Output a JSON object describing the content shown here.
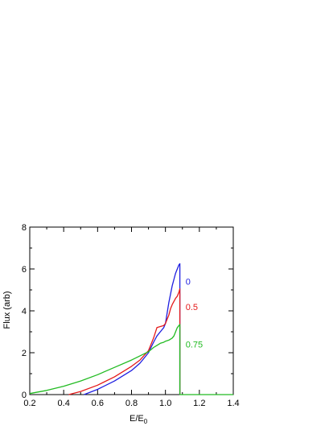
{
  "chart_data": {
    "type": "line",
    "title": "",
    "xlabel": "E/E",
    "xlabel_subscript": "0",
    "ylabel": "Flux (arb)",
    "xlim": [
      0.2,
      1.4
    ],
    "ylim": [
      0,
      8
    ],
    "x_ticks": [
      "0.2",
      "0.4",
      "0.6",
      "0.8",
      "1.0",
      "1.2",
      "1.4"
    ],
    "y_ticks": [
      "0",
      "2",
      "4",
      "6",
      "8"
    ],
    "grid": false,
    "series": [
      {
        "name": "0",
        "color": "#1f1fe0",
        "x": [
          0.52,
          0.6,
          0.7,
          0.8,
          0.85,
          0.9,
          0.93,
          0.95,
          0.97,
          0.99,
          1.0,
          1.01,
          1.02,
          1.03,
          1.04,
          1.05,
          1.06,
          1.07,
          1.08,
          1.085,
          1.085
        ],
        "y": [
          0.0,
          0.25,
          0.65,
          1.15,
          1.5,
          2.0,
          2.5,
          2.8,
          3.0,
          3.2,
          3.4,
          3.9,
          4.4,
          4.8,
          5.2,
          5.5,
          5.8,
          6.0,
          6.2,
          6.25,
          0.0
        ]
      },
      {
        "name": "0.5",
        "color": "#e41a1a",
        "x": [
          0.43,
          0.5,
          0.6,
          0.7,
          0.8,
          0.85,
          0.9,
          0.93,
          0.95,
          0.97,
          0.99,
          1.0,
          1.01,
          1.02,
          1.03,
          1.04,
          1.05,
          1.06,
          1.07,
          1.08,
          1.085,
          1.085
        ],
        "y": [
          0.0,
          0.15,
          0.45,
          0.85,
          1.35,
          1.65,
          2.1,
          2.7,
          3.2,
          3.25,
          3.3,
          3.4,
          3.6,
          3.8,
          4.1,
          4.3,
          4.45,
          4.6,
          4.7,
          4.9,
          5.05,
          0.0
        ]
      },
      {
        "name": "0.75",
        "color": "#22bb22",
        "x": [
          0.2,
          0.3,
          0.4,
          0.5,
          0.6,
          0.7,
          0.8,
          0.85,
          0.9,
          0.93,
          0.95,
          0.97,
          0.99,
          1.0,
          1.02,
          1.04,
          1.05,
          1.06,
          1.07,
          1.08,
          1.085,
          1.085,
          1.4
        ],
        "y": [
          0.05,
          0.2,
          0.4,
          0.65,
          0.95,
          1.3,
          1.65,
          1.85,
          2.05,
          2.25,
          2.35,
          2.45,
          2.5,
          2.55,
          2.6,
          2.7,
          2.8,
          3.0,
          3.2,
          3.3,
          3.35,
          0.0,
          0.0
        ]
      }
    ],
    "annotations": [
      {
        "text": "0",
        "color": "#1f1fe0",
        "x": 1.1,
        "y": 5.4
      },
      {
        "text": "0.5",
        "color": "#e41a1a",
        "x": 1.1,
        "y": 4.2
      },
      {
        "text": "0.75",
        "color": "#22bb22",
        "x": 1.1,
        "y": 2.4
      }
    ]
  }
}
